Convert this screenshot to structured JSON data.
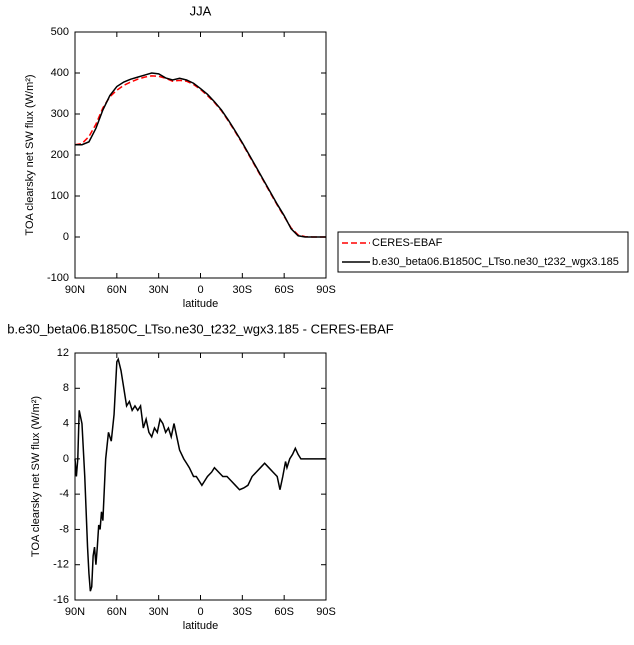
{
  "chart_data": [
    {
      "type": "line",
      "title": "JJA",
      "xlabel": "latitude",
      "ylabel": "TOA clearsky net SW flux (W/m²)",
      "x": [
        90,
        85,
        80,
        75,
        70,
        65,
        60,
        55,
        50,
        45,
        40,
        35,
        30,
        25,
        20,
        15,
        10,
        5,
        0,
        -5,
        -10,
        -15,
        -20,
        -25,
        -30,
        -35,
        -40,
        -45,
        -50,
        -55,
        -60,
        -65,
        -70,
        -75,
        -80,
        -85,
        -90
      ],
      "series": [
        {
          "name": "CERES-EBAF",
          "color": "#ff0000",
          "dashed": true,
          "values": [
            225,
            228,
            245,
            275,
            315,
            342,
            358,
            370,
            378,
            385,
            390,
            393,
            392,
            387,
            380,
            382,
            380,
            372,
            360,
            345,
            328,
            308,
            283,
            256,
            228,
            198,
            168,
            138,
            108,
            78,
            50,
            22,
            5,
            1,
            0,
            0,
            0
          ]
        },
        {
          "name": "b.e30_beta06.B1850C_LTso.ne30_t232_wgx3.185",
          "color": "#000000",
          "dashed": false,
          "values": [
            225,
            225,
            232,
            265,
            310,
            345,
            367,
            378,
            385,
            390,
            395,
            400,
            398,
            388,
            383,
            387,
            383,
            375,
            362,
            348,
            330,
            310,
            285,
            258,
            230,
            200,
            170,
            140,
            110,
            80,
            52,
            20,
            3,
            0,
            0,
            0,
            0
          ]
        }
      ],
      "xlim": [
        90,
        -90
      ],
      "xticks": [
        {
          "value": 90,
          "label": "90N"
        },
        {
          "value": 60,
          "label": "60N"
        },
        {
          "value": 30,
          "label": "30N"
        },
        0,
        {
          "value": -30,
          "label": "30S"
        },
        {
          "value": -60,
          "label": "60S"
        },
        {
          "value": -90,
          "label": "90S"
        }
      ],
      "ylim": [
        -100,
        500
      ],
      "yticks": [
        -100,
        0,
        100,
        200,
        300,
        400,
        500
      ],
      "legend": "right"
    },
    {
      "type": "line",
      "title": "b.e30_beta06.B1850C_LTso.ne30_t232_wgx3.185 - CERES-EBAF",
      "xlabel": "latitude",
      "ylabel": "TOA clearsky net SW flux (W/m²)",
      "x": [
        90,
        89,
        88,
        87,
        85,
        83,
        81,
        80,
        79,
        78,
        77,
        76,
        75,
        74,
        73,
        72,
        71,
        70,
        68,
        66,
        64,
        62,
        60,
        59,
        57,
        55,
        53,
        51,
        49,
        47,
        45,
        43,
        41,
        39,
        37,
        35,
        33,
        31,
        29,
        27,
        25,
        23,
        21,
        19,
        17,
        15,
        12,
        10,
        8,
        5,
        3,
        1,
        -1,
        -3,
        -5,
        -8,
        -10,
        -13,
        -16,
        -19,
        -22,
        -25,
        -28,
        -31,
        -34,
        -37,
        -40,
        -43,
        -46,
        -49,
        -52,
        -55,
        -57,
        -59,
        -61,
        -62,
        -64,
        -66,
        -68,
        -70,
        -72,
        -80,
        -90
      ],
      "values": [
        0,
        -2,
        0,
        5.5,
        4,
        -2,
        -10,
        -13,
        -15,
        -14.5,
        -11,
        -10,
        -12,
        -10,
        -7.5,
        -8,
        -6,
        -7,
        0,
        3,
        2,
        5,
        11,
        11.3,
        10,
        8,
        6,
        6.5,
        5.5,
        6,
        5.5,
        6,
        3.5,
        4.5,
        3,
        2.5,
        3.5,
        3,
        4.5,
        4,
        3,
        3.5,
        2.5,
        4,
        2.5,
        1,
        0,
        -0.5,
        -1,
        -2,
        -2,
        -2.5,
        -3,
        -2.5,
        -2,
        -1.5,
        -1,
        -1.5,
        -2,
        -2,
        -2.5,
        -3,
        -3.5,
        -3.3,
        -3,
        -2,
        -1.5,
        -1,
        -0.5,
        -1,
        -1.5,
        -2,
        -3.5,
        -2,
        -0.3,
        -1,
        0,
        0.5,
        1.2,
        0.5,
        0,
        0,
        0
      ],
      "color": "#000000",
      "xlim": [
        90,
        -90
      ],
      "xticks": [
        {
          "value": 90,
          "label": "90N"
        },
        {
          "value": 60,
          "label": "60N"
        },
        {
          "value": 30,
          "label": "30N"
        },
        0,
        {
          "value": -30,
          "label": "30S"
        },
        {
          "value": -60,
          "label": "60S"
        },
        {
          "value": -90,
          "label": "90S"
        }
      ],
      "ylim": [
        -16,
        12
      ],
      "yticks": [
        -16,
        -12,
        -8,
        -4,
        0,
        4,
        8,
        12
      ]
    }
  ]
}
